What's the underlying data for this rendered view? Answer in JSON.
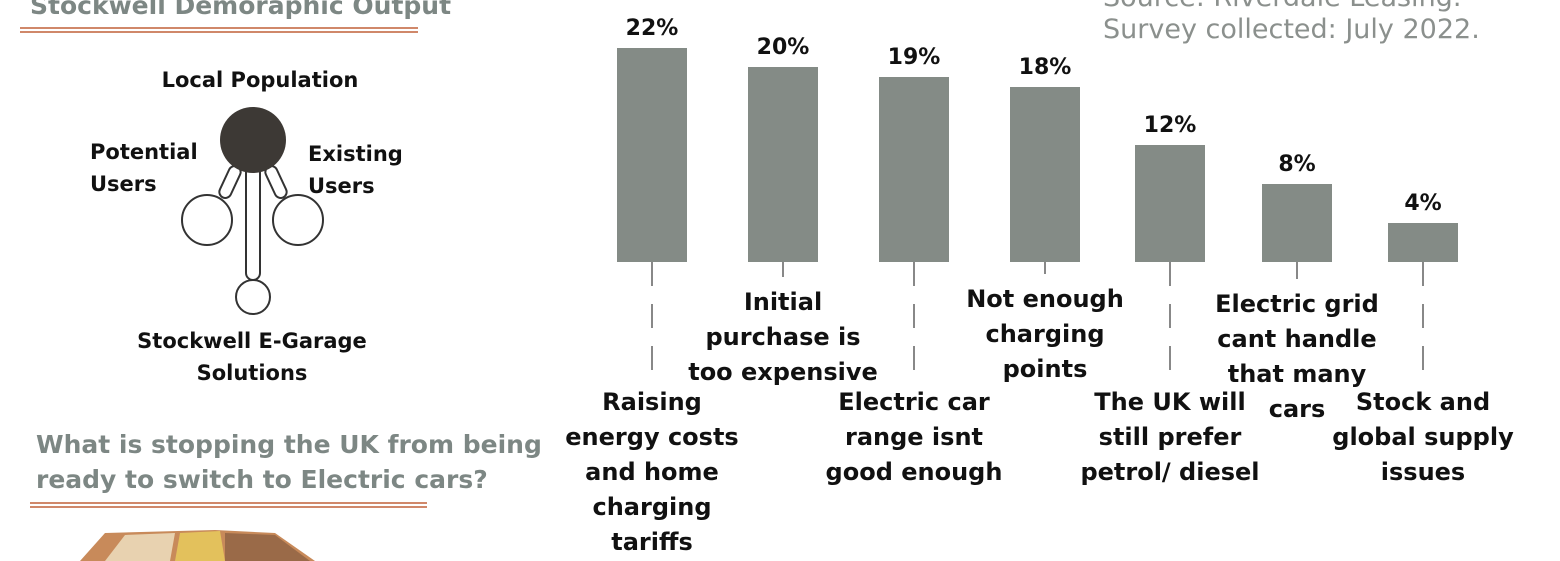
{
  "header": {
    "title": "Stockwell Demoraphic Output",
    "source": "Source: Riverdale Leasing.",
    "survey": "Survey collected: July 2022."
  },
  "diagram": {
    "center": "Local Population",
    "left": "Potential Users",
    "right": "Existing Users",
    "bottom": "Stockwell E-Garage Solutions"
  },
  "question": "What is stopping the UK from being ready to switch to Electric cars?",
  "chart_data": {
    "type": "bar",
    "color": "#848b86",
    "categories": [
      "Raising energy costs and home charging tariffs",
      "Initial purchase is too expensive",
      "Electric car range isnt good enough",
      "Not enough charging points",
      "The UK will still prefer petrol/ diesel",
      "Electric grid cant handle that many cars",
      "Stock and global supply issues"
    ],
    "values": [
      22,
      20,
      19,
      18,
      12,
      8,
      4
    ],
    "value_labels": [
      "22%",
      "20%",
      "19%",
      "18%",
      "12%",
      "8%",
      "4%"
    ]
  }
}
